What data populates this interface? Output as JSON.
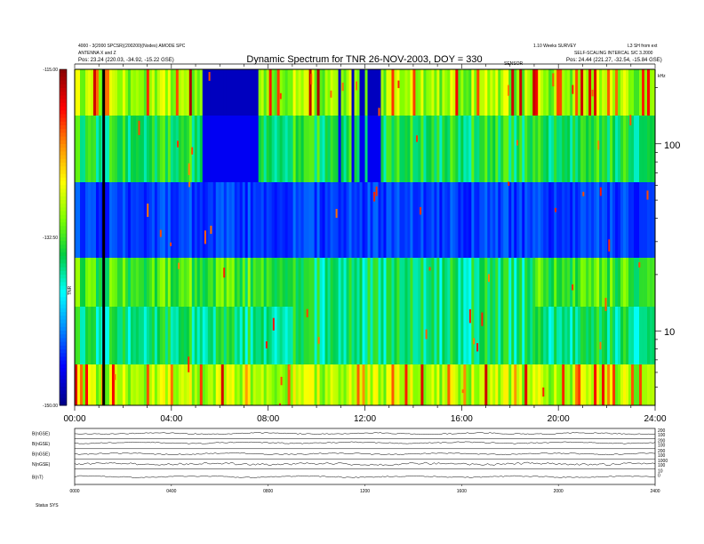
{
  "chart_data": {
    "type": "heatmap",
    "title": "Dynamic Spectrum for TNR 26-NOV-2003, DOY = 330",
    "header": {
      "top_left_line1": "4000 - 3(2000 SPCSR)(200200)(Nodes) AMODE SPC",
      "top_left_line2": "ANTENNA X and Z",
      "position_left": "Pos:   23.24 (220.03, -34.92, -15.22 GSE)",
      "top_right_line1": "1.10 Weeks  SURVEY",
      "top_right_line2": "SELF-SCALING  INTERCAL  S/C  3.2000",
      "position_right": "Pos:   24.44 (221.27, -32.54, -15.84 GSE)",
      "top_far_right": "L3 SH from ext",
      "top_center_small": "SENSOR"
    },
    "x_axis": {
      "min": 0,
      "max": 24,
      "tick_labels": [
        "00:00",
        "04:00",
        "08:00",
        "12:00",
        "16:00",
        "20:00",
        "24:00"
      ],
      "tick_hours": [
        0,
        4,
        8,
        12,
        16,
        20,
        24
      ]
    },
    "y_axis_right": {
      "scale": "log",
      "range": [
        4,
        250
      ],
      "unit_label": "kHz",
      "tick_labels": [
        "100",
        "10"
      ],
      "tick_values": [
        100,
        10
      ]
    },
    "colorbar": {
      "label": "TNR",
      "tick_labels": [
        "-115.00",
        "-132.50",
        "-150.00"
      ],
      "tick_values": [
        -115,
        -132.5,
        -150
      ],
      "colors": [
        "#8b0000",
        "#ff0000",
        "#ff8c00",
        "#ffff00",
        "#7fff00",
        "#00cc44",
        "#00ffff",
        "#0088ff",
        "#0000ff",
        "#00008b"
      ]
    },
    "marker_line_hour": 1.2,
    "panels": {
      "labels": [
        "B(nGSE)",
        "B(nGSE)",
        "B(nGSE)",
        "N(nGSE)",
        "B(nT)"
      ],
      "right_labels": [
        [
          "200",
          "100"
        ],
        [
          "200",
          "100"
        ],
        [
          "200",
          "100"
        ],
        [
          "1000",
          "100"
        ],
        [
          "10",
          "0"
        ]
      ],
      "x_tick_labels": [
        "0000",
        "0400",
        "0800",
        "1200",
        "1600",
        "2000",
        "2400"
      ],
      "footer": "Status    SYS"
    }
  }
}
